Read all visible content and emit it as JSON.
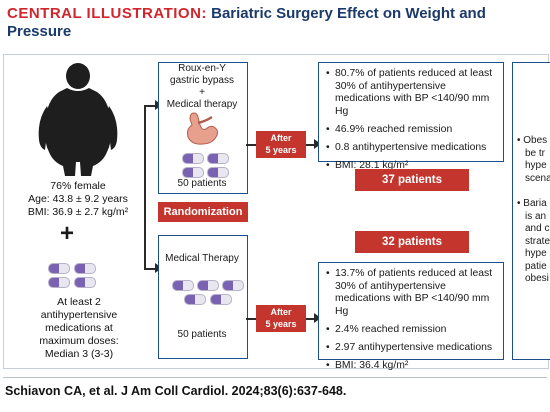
{
  "title": {
    "label": "CENTRAL ILLUSTRATION:",
    "text_line1": "Bariatric Surgery Effect on Weight and",
    "text_line2": "Pressure"
  },
  "population": {
    "female": "76% female",
    "age": "Age: 43.8 ± 9.2 years",
    "bmi": "BMI: 36.9 ± 2.7 kg/m²",
    "plus": "+",
    "meds_line1": "At least 2",
    "meds_line2": "antihypertensive",
    "meds_line3": "medications at",
    "meds_line4": "maximum doses:",
    "meds_line5": "Median 3 (3-3)"
  },
  "randomization": "Randomization",
  "surgery_arm": {
    "line1": "Roux-en-Y",
    "line2": "gastric bypass",
    "line3": "+",
    "line4": "Medical therapy",
    "patients": "50 patients"
  },
  "medical_arm": {
    "line1": "Medical Therapy",
    "patients": "50 patients"
  },
  "after_surgery": {
    "line1": "After",
    "line2": "5 years"
  },
  "after_medical": {
    "line1": "After",
    "line2": "5 years"
  },
  "surgery_results": [
    "80.7% of patients reduced at least 30% of antihypertensive medications with BP <140/90 mm Hg",
    "46.9% reached remission",
    "0.8 antihypertensive medications",
    "BMI: 28.1 kg/m²"
  ],
  "medical_results": [
    "13.7% of patients reduced at least 30% of antihypertensive medications with BP <140/90 mm Hg",
    "2.4% reached remission",
    "2.97 antihypertensive medications",
    "BMI: 36.4 kg/m²"
  ],
  "surgery_count": "37 patients",
  "medical_count": "32 patients",
  "conclusions": {
    "c1_line1": "• Obes",
    "c1_line2": "be tr",
    "c1_line3": "hype",
    "c1_line4": "scena",
    "c2_line1": "• Baria",
    "c2_line2": "is an",
    "c2_line3": "and c",
    "c2_line4": "strate",
    "c2_line5": "hype",
    "c2_line6": "patie",
    "c2_line7": "obesi"
  },
  "citation": "Schiavon CA, et al. J Am Coll Cardiol. 2024;83(6):637-648.",
  "colors": {
    "title_red": "#d0262d",
    "title_blue": "#1b3a6b",
    "box_border": "#1d4f8a",
    "red_box": "#c4352e"
  }
}
